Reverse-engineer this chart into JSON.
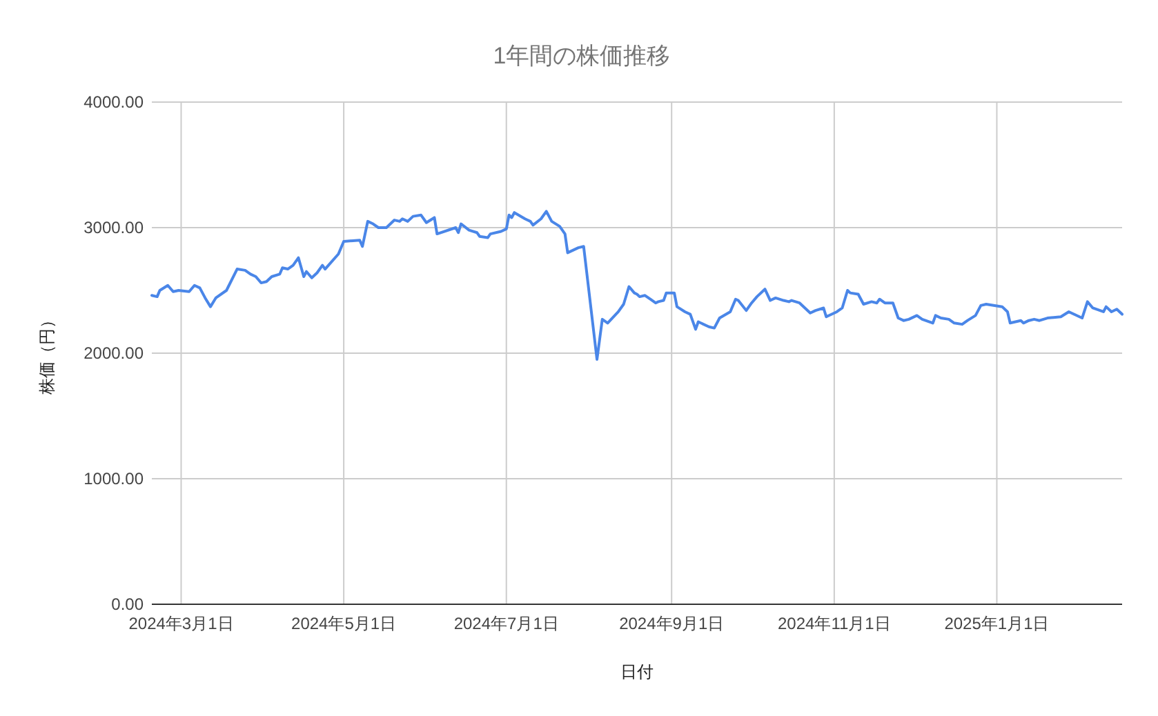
{
  "chart_data": {
    "type": "line",
    "title": "1年間の株価推移",
    "xlabel": "日付",
    "ylabel": "株価（円）",
    "grid": true,
    "xlim": [
      "2024-02-19",
      "2025-02-17"
    ],
    "xticks": [
      {
        "value": "2024-03-01",
        "label": "2024年3月1日"
      },
      {
        "value": "2024-05-01",
        "label": "2024年5月1日"
      },
      {
        "value": "2024-07-01",
        "label": "2024年7月1日"
      },
      {
        "value": "2024-09-01",
        "label": "2024年9月1日"
      },
      {
        "value": "2024-11-01",
        "label": "2024年11月1日"
      },
      {
        "value": "2025-01-01",
        "label": "2025年1月1日"
      }
    ],
    "ylim": [
      0,
      4000
    ],
    "yticks": [
      {
        "value": 0,
        "label": "0.00"
      },
      {
        "value": 1000,
        "label": "1000.00"
      },
      {
        "value": 2000,
        "label": "2000.00"
      },
      {
        "value": 3000,
        "label": "3000.00"
      },
      {
        "value": 4000,
        "label": "4000.00"
      }
    ],
    "series": [
      {
        "color": "#4a86e8",
        "x": [
          "2024-02-19",
          "2024-02-21",
          "2024-02-22",
          "2024-02-25",
          "2024-02-27",
          "2024-02-29",
          "2024-03-04",
          "2024-03-06",
          "2024-03-08",
          "2024-03-10",
          "2024-03-12",
          "2024-03-14",
          "2024-03-18",
          "2024-03-22",
          "2024-03-25",
          "2024-03-27",
          "2024-03-29",
          "2024-03-31",
          "2024-04-02",
          "2024-04-04",
          "2024-04-07",
          "2024-04-08",
          "2024-04-10",
          "2024-04-12",
          "2024-04-14",
          "2024-04-16",
          "2024-04-17",
          "2024-04-19",
          "2024-04-21",
          "2024-04-23",
          "2024-04-24",
          "2024-04-29",
          "2024-05-01",
          "2024-05-07",
          "2024-05-08",
          "2024-05-10",
          "2024-05-12",
          "2024-05-14",
          "2024-05-17",
          "2024-05-20",
          "2024-05-22",
          "2024-05-23",
          "2024-05-25",
          "2024-05-27",
          "2024-05-30",
          "2024-06-01",
          "2024-06-04",
          "2024-06-05",
          "2024-06-12",
          "2024-06-13",
          "2024-06-14",
          "2024-06-17",
          "2024-06-20",
          "2024-06-21",
          "2024-06-24",
          "2024-06-25",
          "2024-06-29",
          "2024-07-01",
          "2024-07-02",
          "2024-07-03",
          "2024-07-04",
          "2024-07-08",
          "2024-07-10",
          "2024-07-11",
          "2024-07-14",
          "2024-07-16",
          "2024-07-18",
          "2024-07-21",
          "2024-07-23",
          "2024-07-24",
          "2024-07-28",
          "2024-07-30",
          "2024-08-04",
          "2024-08-06",
          "2024-08-08",
          "2024-08-12",
          "2024-08-14",
          "2024-08-16",
          "2024-08-18",
          "2024-08-19",
          "2024-08-20",
          "2024-08-22",
          "2024-08-24",
          "2024-08-26",
          "2024-08-27",
          "2024-08-29",
          "2024-08-30",
          "2024-09-02",
          "2024-09-03",
          "2024-09-06",
          "2024-09-08",
          "2024-09-10",
          "2024-09-11",
          "2024-09-15",
          "2024-09-17",
          "2024-09-19",
          "2024-09-23",
          "2024-09-25",
          "2024-09-26",
          "2024-09-29",
          "2024-10-01",
          "2024-10-03",
          "2024-10-06",
          "2024-10-08",
          "2024-10-10",
          "2024-10-13",
          "2024-10-15",
          "2024-10-16",
          "2024-10-19",
          "2024-10-21",
          "2024-10-23",
          "2024-10-25",
          "2024-10-28",
          "2024-10-29",
          "2024-11-02",
          "2024-11-04",
          "2024-11-06",
          "2024-11-07",
          "2024-11-10",
          "2024-11-12",
          "2024-11-15",
          "2024-11-17",
          "2024-11-18",
          "2024-11-20",
          "2024-11-23",
          "2024-11-25",
          "2024-11-27",
          "2024-11-29",
          "2024-12-02",
          "2024-12-04",
          "2024-12-08",
          "2024-12-09",
          "2024-12-11",
          "2024-12-14",
          "2024-12-16",
          "2024-12-19",
          "2024-12-21",
          "2024-12-24",
          "2024-12-26",
          "2024-12-28",
          "2025-01-03",
          "2025-01-05",
          "2025-01-06",
          "2025-01-10",
          "2025-01-11",
          "2025-01-13",
          "2025-01-15",
          "2025-01-17",
          "2025-01-20",
          "2025-01-25",
          "2025-01-28",
          "2025-02-02",
          "2025-02-04",
          "2025-02-06",
          "2025-02-10",
          "2025-02-11",
          "2025-02-13",
          "2025-02-15",
          "2025-02-17"
        ],
        "values": [
          2460,
          2450,
          2500,
          2540,
          2490,
          2500,
          2490,
          2540,
          2520,
          2440,
          2370,
          2440,
          2500,
          2670,
          2660,
          2630,
          2610,
          2560,
          2570,
          2610,
          2630,
          2680,
          2670,
          2700,
          2760,
          2610,
          2650,
          2600,
          2640,
          2700,
          2670,
          2790,
          2890,
          2900,
          2850,
          3050,
          3030,
          3000,
          3000,
          3060,
          3050,
          3070,
          3050,
          3090,
          3100,
          3040,
          3080,
          2950,
          3000,
          2960,
          3030,
          2980,
          2960,
          2930,
          2920,
          2950,
          2970,
          2990,
          3100,
          3080,
          3120,
          3070,
          3050,
          3020,
          3070,
          3130,
          3050,
          3010,
          2950,
          2800,
          2840,
          2850,
          1950,
          2270,
          2240,
          2330,
          2390,
          2530,
          2480,
          2470,
          2450,
          2460,
          2430,
          2400,
          2410,
          2420,
          2480,
          2480,
          2370,
          2330,
          2310,
          2190,
          2250,
          2210,
          2200,
          2280,
          2330,
          2430,
          2420,
          2340,
          2400,
          2450,
          2510,
          2420,
          2440,
          2420,
          2410,
          2420,
          2400,
          2360,
          2320,
          2340,
          2360,
          2290,
          2330,
          2360,
          2500,
          2480,
          2470,
          2390,
          2410,
          2400,
          2430,
          2400,
          2400,
          2280,
          2260,
          2270,
          2300,
          2270,
          2240,
          2300,
          2280,
          2270,
          2240,
          2230,
          2260,
          2300,
          2380,
          2390,
          2370,
          2330,
          2240,
          2260,
          2240,
          2260,
          2270,
          2260,
          2280,
          2290,
          2330,
          2280,
          2410,
          2360,
          2330,
          2370,
          2330,
          2350,
          2310
        ]
      }
    ]
  }
}
